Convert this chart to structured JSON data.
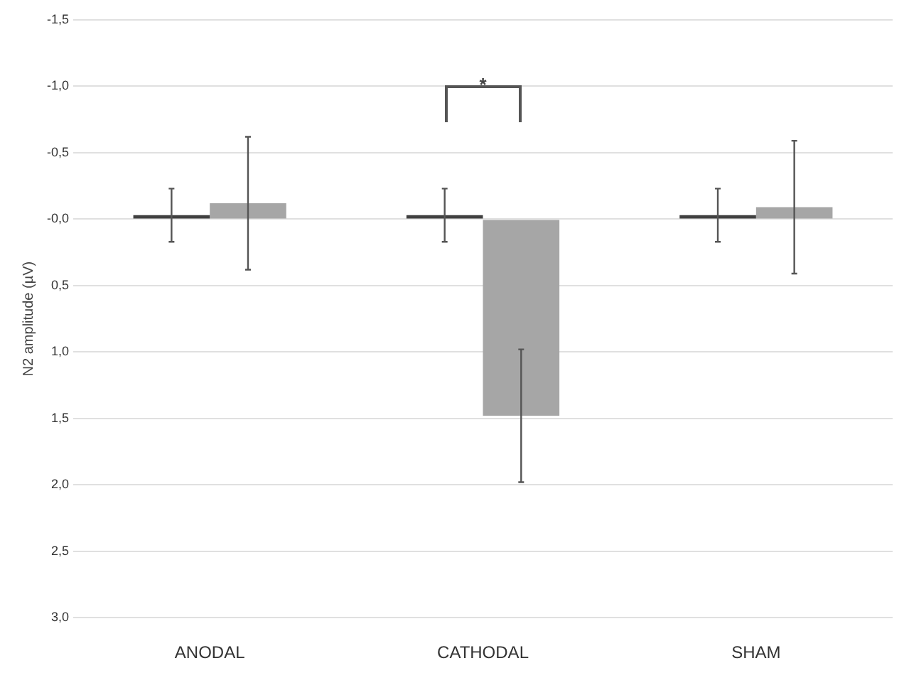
{
  "chart_data": {
    "type": "bar",
    "ylabel": "N2 amplitude (µV)",
    "categories": [
      "ANODAL",
      "CATHODAL",
      "SHAM"
    ],
    "series": [
      {
        "color": "#404040",
        "values": [
          -0.03,
          -0.03,
          -0.03
        ],
        "errors": [
          0.2,
          0.2,
          0.2
        ]
      },
      {
        "color": "#a6a6a6",
        "values": [
          -0.12,
          1.48,
          -0.09
        ],
        "errors": [
          0.5,
          0.5,
          0.5
        ]
      }
    ],
    "ylim": [
      3.0,
      -1.5
    ],
    "yticks": [
      {
        "value": -1.5,
        "label": "-1,5"
      },
      {
        "value": -1.0,
        "label": "-1,0"
      },
      {
        "value": -0.5,
        "label": "-0,5"
      },
      {
        "value": 0,
        "label": "-0,0"
      },
      {
        "value": 0.5,
        "label": "0,5"
      },
      {
        "value": 1.0,
        "label": "1,0"
      },
      {
        "value": 1.5,
        "label": "1,5"
      },
      {
        "value": 2.0,
        "label": "2,0"
      },
      {
        "value": 2.5,
        "label": "2,5"
      },
      {
        "value": 3.0,
        "label": "3,0"
      }
    ],
    "grid": "y",
    "legend": false,
    "annotations": [
      "*"
    ]
  }
}
